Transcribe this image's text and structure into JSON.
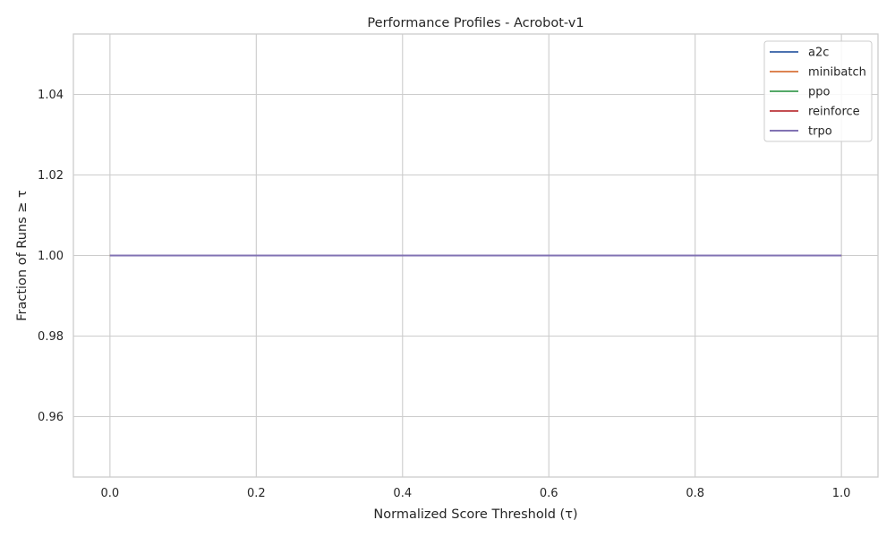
{
  "chart_data": {
    "type": "line",
    "title": "Performance Profiles - Acrobot-v1",
    "xlabel": "Normalized Score Threshold (τ)",
    "ylabel": "Fraction of Runs ≥ τ",
    "xlim": [
      -0.05,
      1.05
    ],
    "ylim": [
      0.945,
      1.055
    ],
    "xticks": [
      0.0,
      0.2,
      0.4,
      0.6,
      0.8,
      1.0
    ],
    "xtick_labels": [
      "0.0",
      "0.2",
      "0.4",
      "0.6",
      "0.8",
      "1.0"
    ],
    "yticks": [
      0.96,
      0.98,
      1.0,
      1.02,
      1.04
    ],
    "ytick_labels": [
      "0.96",
      "0.98",
      "1.00",
      "1.02",
      "1.04"
    ],
    "grid": true,
    "legend_position": "top-right",
    "series": [
      {
        "name": "a2c",
        "color": "#4c72b0",
        "x": [
          0.0,
          1.0
        ],
        "y": [
          1.0,
          1.0
        ]
      },
      {
        "name": "minibatch",
        "color": "#dd8452",
        "x": [
          0.0,
          1.0
        ],
        "y": [
          1.0,
          1.0
        ]
      },
      {
        "name": "ppo",
        "color": "#55a868",
        "x": [
          0.0,
          1.0
        ],
        "y": [
          1.0,
          1.0
        ]
      },
      {
        "name": "reinforce",
        "color": "#c44e52",
        "x": [
          0.0,
          1.0
        ],
        "y": [
          1.0,
          1.0
        ]
      },
      {
        "name": "trpo",
        "color": "#8172b3",
        "x": [
          0.0,
          1.0
        ],
        "y": [
          1.0,
          1.0
        ]
      }
    ]
  }
}
